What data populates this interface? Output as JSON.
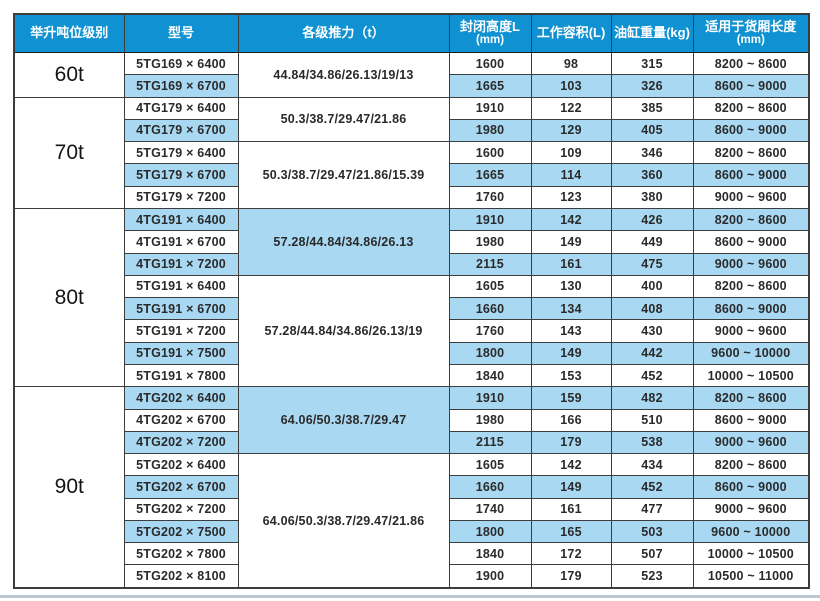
{
  "colors": {
    "header_bg": "#0f91d2",
    "header_text": "#ffffff",
    "row_alt_bg": "#a9d9f2",
    "border": "#3d3d3d",
    "text": "#2a2a2a",
    "bottom_rule": "#b9c8d1"
  },
  "table": {
    "headers": [
      {
        "label": "举升吨位级别"
      },
      {
        "label": "型号"
      },
      {
        "label": "各级推力（t）"
      },
      {
        "label": "封闭高度L",
        "sub": "(mm)"
      },
      {
        "label": "工作容积(L)"
      },
      {
        "label": "油缸重量(kg)"
      },
      {
        "label": "适用于货厢长度",
        "sub": "(mm)"
      }
    ],
    "groups": [
      {
        "tonnage": "60t",
        "subgroups": [
          {
            "thrust": "44.84/34.86/26.13/19/13",
            "thrust_shaded": false,
            "rows": [
              {
                "model": "5TG169 × 6400",
                "height": "1600",
                "volume": "98",
                "weight": "315",
                "box": "8200 ~ 8600",
                "shaded": false
              },
              {
                "model": "5TG169 × 6700",
                "height": "1665",
                "volume": "103",
                "weight": "326",
                "box": "8600 ~ 9000",
                "shaded": true
              }
            ]
          }
        ]
      },
      {
        "tonnage": "70t",
        "subgroups": [
          {
            "thrust": "50.3/38.7/29.47/21.86",
            "thrust_shaded": false,
            "rows": [
              {
                "model": "4TG179 × 6400",
                "height": "1910",
                "volume": "122",
                "weight": "385",
                "box": "8200 ~ 8600",
                "shaded": false
              },
              {
                "model": "4TG179 × 6700",
                "height": "1980",
                "volume": "129",
                "weight": "405",
                "box": "8600 ~ 9000",
                "shaded": true
              }
            ]
          },
          {
            "thrust": "50.3/38.7/29.47/21.86/15.39",
            "thrust_shaded": false,
            "rows": [
              {
                "model": "5TG179 × 6400",
                "height": "1600",
                "volume": "109",
                "weight": "346",
                "box": "8200 ~ 8600",
                "shaded": false
              },
              {
                "model": "5TG179 × 6700",
                "height": "1665",
                "volume": "114",
                "weight": "360",
                "box": "8600 ~ 9000",
                "shaded": true
              },
              {
                "model": "5TG179 × 7200",
                "height": "1760",
                "volume": "123",
                "weight": "380",
                "box": "9000 ~ 9600",
                "shaded": false
              }
            ]
          }
        ]
      },
      {
        "tonnage": "80t",
        "subgroups": [
          {
            "thrust": "57.28/44.84/34.86/26.13",
            "thrust_shaded": true,
            "rows": [
              {
                "model": "4TG191 × 6400",
                "height": "1910",
                "volume": "142",
                "weight": "426",
                "box": "8200 ~ 8600",
                "shaded": true
              },
              {
                "model": "4TG191 × 6700",
                "height": "1980",
                "volume": "149",
                "weight": "449",
                "box": "8600 ~ 9000",
                "shaded": false
              },
              {
                "model": "4TG191 × 7200",
                "height": "2115",
                "volume": "161",
                "weight": "475",
                "box": "9000 ~ 9600",
                "shaded": true
              }
            ]
          },
          {
            "thrust": "57.28/44.84/34.86/26.13/19",
            "thrust_shaded": false,
            "rows": [
              {
                "model": "5TG191 × 6400",
                "height": "1605",
                "volume": "130",
                "weight": "400",
                "box": "8200 ~ 8600",
                "shaded": false
              },
              {
                "model": "5TG191 × 6700",
                "height": "1660",
                "volume": "134",
                "weight": "408",
                "box": "8600 ~ 9000",
                "shaded": true
              },
              {
                "model": "5TG191 × 7200",
                "height": "1760",
                "volume": "143",
                "weight": "430",
                "box": "9000 ~ 9600",
                "shaded": false
              },
              {
                "model": "5TG191 × 7500",
                "height": "1800",
                "volume": "149",
                "weight": "442",
                "box": "9600 ~ 10000",
                "shaded": true
              },
              {
                "model": "5TG191 × 7800",
                "height": "1840",
                "volume": "153",
                "weight": "452",
                "box": "10000 ~ 10500",
                "shaded": false
              }
            ]
          }
        ]
      },
      {
        "tonnage": "90t",
        "subgroups": [
          {
            "thrust": "64.06/50.3/38.7/29.47",
            "thrust_shaded": true,
            "rows": [
              {
                "model": "4TG202 × 6400",
                "height": "1910",
                "volume": "159",
                "weight": "482",
                "box": "8200 ~ 8600",
                "shaded": true
              },
              {
                "model": "4TG202 × 6700",
                "height": "1980",
                "volume": "166",
                "weight": "510",
                "box": "8600 ~ 9000",
                "shaded": false
              },
              {
                "model": "4TG202 × 7200",
                "height": "2115",
                "volume": "179",
                "weight": "538",
                "box": "9000 ~ 9600",
                "shaded": true
              }
            ]
          },
          {
            "thrust": "64.06/50.3/38.7/29.47/21.86",
            "thrust_shaded": false,
            "rows": [
              {
                "model": "5TG202 × 6400",
                "height": "1605",
                "volume": "142",
                "weight": "434",
                "box": "8200 ~ 8600",
                "shaded": false
              },
              {
                "model": "5TG202 × 6700",
                "height": "1660",
                "volume": "149",
                "weight": "452",
                "box": "8600 ~ 9000",
                "shaded": true
              },
              {
                "model": "5TG202 × 7200",
                "height": "1740",
                "volume": "161",
                "weight": "477",
                "box": "9000 ~ 9600",
                "shaded": false
              },
              {
                "model": "5TG202 × 7500",
                "height": "1800",
                "volume": "165",
                "weight": "503",
                "box": "9600 ~ 10000",
                "shaded": true
              },
              {
                "model": "5TG202 × 7800",
                "height": "1840",
                "volume": "172",
                "weight": "507",
                "box": "10000 ~ 10500",
                "shaded": false
              },
              {
                "model": "5TG202 × 8100",
                "height": "1900",
                "volume": "179",
                "weight": "523",
                "box": "10500 ~ 11000",
                "shaded": false
              }
            ]
          }
        ]
      }
    ]
  }
}
